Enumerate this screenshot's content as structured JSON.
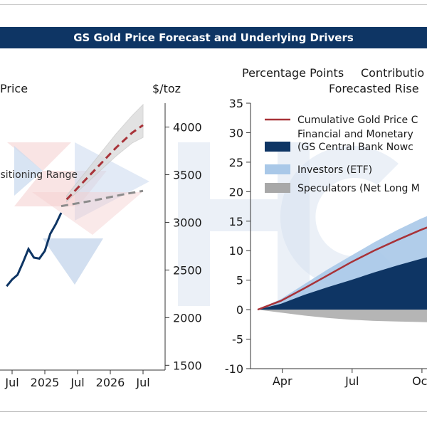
{
  "header": {
    "title": "GS Gold Price Forecast and Underlying Drivers"
  },
  "chart_data": [
    {
      "type": "line",
      "title_fragment": "Price",
      "right_axis_unit": "$/toz",
      "x_tick_labels": [
        "Jul",
        "2025",
        "Jul",
        "2026",
        "Jul"
      ],
      "y_ticks": [
        1500,
        2000,
        2500,
        3000,
        3500,
        4000
      ],
      "ylim": [
        1450,
        4250
      ],
      "annotation": "Positioning Range",
      "series": [
        {
          "name": "",
          "style": "solid",
          "color": "#0e3564",
          "x": [
            "2024-06",
            "2024-07",
            "2024-08",
            "2024-09",
            "2024-10",
            "2024-11",
            "2024-12",
            "2025-01",
            "2025-02",
            "2025-03",
            "2025-04"
          ],
          "y": [
            2330,
            2400,
            2450,
            2580,
            2720,
            2630,
            2620,
            2700,
            2880,
            2980,
            3100
          ]
        },
        {
          "name": "",
          "style": "dashed",
          "color": "#a83238",
          "x": [
            "2025-05",
            "2025-08",
            "2025-11",
            "2026-02",
            "2026-05",
            "2026-07"
          ],
          "y": [
            3240,
            3420,
            3600,
            3780,
            3940,
            4020
          ]
        },
        {
          "name": "",
          "style": "dashed",
          "color": "#8c8c8c",
          "x": [
            "2025-04",
            "2025-10",
            "2026-04",
            "2026-07"
          ],
          "y": [
            3170,
            3230,
            3300,
            3330
          ]
        }
      ]
    },
    {
      "type": "area",
      "ylabel": "Percentage Points",
      "title_fragment_line1": "Contributio",
      "title_fragment_line2": "Forecasted Rise",
      "x_tick_labels": [
        "Apr",
        "Jul",
        "Oct"
      ],
      "y_ticks": [
        -10,
        -5,
        0,
        5,
        10,
        15,
        20,
        25,
        30,
        35
      ],
      "ylim": [
        -10,
        35
      ],
      "legend": [
        {
          "label": "Cumulative Gold Price C",
          "color": "#a83238",
          "kind": "line"
        },
        {
          "label": "Financial and Monetary",
          "label2": "(GS Central Bank Nowc",
          "color": "#0e3564",
          "kind": "box"
        },
        {
          "label": "Investors (ETF)",
          "color": "#a9c8e8",
          "kind": "box"
        },
        {
          "label": "Speculators (Net Long M",
          "color": "#a8a8a8",
          "kind": "box"
        }
      ],
      "series": [
        {
          "name": "Cumulative Gold Price C",
          "x": [
            "Mar",
            "Apr",
            "May",
            "Jun",
            "Jul",
            "Aug",
            "Sep",
            "Oct",
            "Nov"
          ],
          "values": [
            0,
            1.5,
            3.6,
            5.8,
            8.0,
            10.0,
            11.8,
            13.5,
            15.0
          ]
        },
        {
          "name": "Financial and Monetary",
          "x": [
            "Mar",
            "Apr",
            "May",
            "Jun",
            "Jul",
            "Aug",
            "Sep",
            "Oct",
            "Nov"
          ],
          "values": [
            0,
            1.0,
            2.5,
            3.8,
            5.0,
            6.3,
            7.5,
            8.6,
            9.6
          ]
        },
        {
          "name": "Investors (ETF)",
          "x": [
            "Mar",
            "Apr",
            "May",
            "Jun",
            "Jul",
            "Aug",
            "Sep",
            "Oct",
            "Nov"
          ],
          "values": [
            0,
            0.8,
            1.8,
            3.0,
            4.1,
            5.1,
            6.0,
            6.8,
            7.4
          ]
        },
        {
          "name": "Speculators (Net Long M",
          "x": [
            "Mar",
            "Apr",
            "May",
            "Jun",
            "Jul",
            "Aug",
            "Sep",
            "Oct",
            "Nov"
          ],
          "values": [
            0,
            -0.5,
            -1.0,
            -1.4,
            -1.7,
            -1.9,
            -2.0,
            -2.1,
            -2.2
          ]
        }
      ]
    }
  ]
}
